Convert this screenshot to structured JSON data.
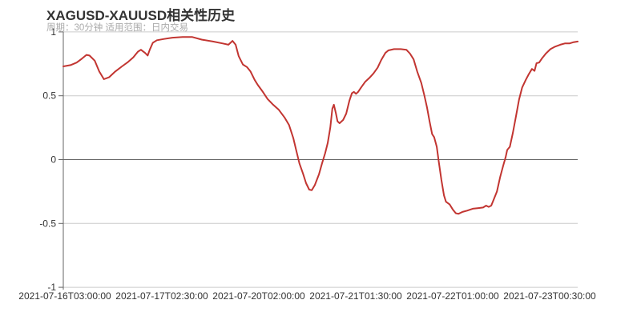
{
  "header": {
    "title": "XAGUSD-XAUUSD相关性历史",
    "subtitle": "周期：30分钟 适用范围：日内交易"
  },
  "chart_data": {
    "type": "line",
    "title": "XAGUSD-XAUUSD相关性历史",
    "subtitle": "周期：30分钟 适用范围：日内交易",
    "xlabel": "",
    "ylabel": "",
    "ylim": [
      -1,
      1
    ],
    "yticks": [
      1,
      0.5,
      0,
      -0.5,
      -1
    ],
    "xtick_labels": [
      "2021-07-16T03:00:00",
      "2021-07-17T02:30:00",
      "2021-07-20T02:00:00",
      "2021-07-21T01:30:00",
      "2021-07-22T01:00:00",
      "2021-07-23T00:30:00"
    ],
    "grid": true,
    "legend_position": "none",
    "colors": {
      "series": "#c23531",
      "grid_light": "#cccccc",
      "axis": "#666666",
      "zero_line": "#666666",
      "tick_label": "#333333",
      "title": "#333333",
      "subtitle": "#aaaaaa",
      "background": "#ffffff"
    },
    "series": [
      {
        "name": "XAGUSD-XAUUSD 相关性",
        "color": "#c23531",
        "points": [
          [
            0.0,
            0.73
          ],
          [
            0.014,
            0.74
          ],
          [
            0.026,
            0.76
          ],
          [
            0.036,
            0.79
          ],
          [
            0.045,
            0.82
          ],
          [
            0.051,
            0.815
          ],
          [
            0.061,
            0.775
          ],
          [
            0.07,
            0.69
          ],
          [
            0.079,
            0.63
          ],
          [
            0.089,
            0.645
          ],
          [
            0.101,
            0.69
          ],
          [
            0.114,
            0.73
          ],
          [
            0.126,
            0.765
          ],
          [
            0.136,
            0.8
          ],
          [
            0.145,
            0.845
          ],
          [
            0.151,
            0.86
          ],
          [
            0.159,
            0.835
          ],
          [
            0.164,
            0.815
          ],
          [
            0.168,
            0.86
          ],
          [
            0.174,
            0.915
          ],
          [
            0.182,
            0.935
          ],
          [
            0.196,
            0.945
          ],
          [
            0.212,
            0.955
          ],
          [
            0.232,
            0.96
          ],
          [
            0.251,
            0.96
          ],
          [
            0.269,
            0.94
          ],
          [
            0.291,
            0.925
          ],
          [
            0.31,
            0.91
          ],
          [
            0.321,
            0.9
          ],
          [
            0.329,
            0.93
          ],
          [
            0.335,
            0.9
          ],
          [
            0.341,
            0.81
          ],
          [
            0.349,
            0.745
          ],
          [
            0.357,
            0.725
          ],
          [
            0.364,
            0.69
          ],
          [
            0.372,
            0.625
          ],
          [
            0.378,
            0.585
          ],
          [
            0.388,
            0.53
          ],
          [
            0.397,
            0.475
          ],
          [
            0.408,
            0.43
          ],
          [
            0.419,
            0.39
          ],
          [
            0.43,
            0.33
          ],
          [
            0.439,
            0.27
          ],
          [
            0.447,
            0.17
          ],
          [
            0.453,
            0.07
          ],
          [
            0.459,
            -0.03
          ],
          [
            0.466,
            -0.11
          ],
          [
            0.472,
            -0.185
          ],
          [
            0.478,
            -0.235
          ],
          [
            0.483,
            -0.24
          ],
          [
            0.489,
            -0.2
          ],
          [
            0.497,
            -0.115
          ],
          [
            0.503,
            -0.03
          ],
          [
            0.509,
            0.05
          ],
          [
            0.514,
            0.13
          ],
          [
            0.519,
            0.25
          ],
          [
            0.523,
            0.4
          ],
          [
            0.526,
            0.43
          ],
          [
            0.53,
            0.36
          ],
          [
            0.533,
            0.3
          ],
          [
            0.537,
            0.285
          ],
          [
            0.544,
            0.31
          ],
          [
            0.55,
            0.36
          ],
          [
            0.556,
            0.46
          ],
          [
            0.561,
            0.52
          ],
          [
            0.565,
            0.53
          ],
          [
            0.569,
            0.515
          ],
          [
            0.573,
            0.53
          ],
          [
            0.579,
            0.565
          ],
          [
            0.587,
            0.61
          ],
          [
            0.595,
            0.64
          ],
          [
            0.603,
            0.675
          ],
          [
            0.611,
            0.72
          ],
          [
            0.618,
            0.78
          ],
          [
            0.626,
            0.835
          ],
          [
            0.632,
            0.855
          ],
          [
            0.643,
            0.865
          ],
          [
            0.656,
            0.865
          ],
          [
            0.667,
            0.86
          ],
          [
            0.674,
            0.83
          ],
          [
            0.681,
            0.785
          ],
          [
            0.688,
            0.69
          ],
          [
            0.696,
            0.6
          ],
          [
            0.702,
            0.5
          ],
          [
            0.707,
            0.41
          ],
          [
            0.712,
            0.3
          ],
          [
            0.717,
            0.2
          ],
          [
            0.721,
            0.175
          ],
          [
            0.726,
            0.1
          ],
          [
            0.73,
            -0.02
          ],
          [
            0.735,
            -0.16
          ],
          [
            0.74,
            -0.28
          ],
          [
            0.744,
            -0.33
          ],
          [
            0.751,
            -0.35
          ],
          [
            0.757,
            -0.39
          ],
          [
            0.763,
            -0.42
          ],
          [
            0.768,
            -0.425
          ],
          [
            0.776,
            -0.41
          ],
          [
            0.785,
            -0.4
          ],
          [
            0.796,
            -0.385
          ],
          [
            0.807,
            -0.38
          ],
          [
            0.816,
            -0.375
          ],
          [
            0.822,
            -0.36
          ],
          [
            0.827,
            -0.37
          ],
          [
            0.832,
            -0.36
          ],
          [
            0.836,
            -0.32
          ],
          [
            0.843,
            -0.25
          ],
          [
            0.849,
            -0.14
          ],
          [
            0.855,
            -0.05
          ],
          [
            0.86,
            0.02
          ],
          [
            0.863,
            0.075
          ],
          [
            0.868,
            0.1
          ],
          [
            0.874,
            0.21
          ],
          [
            0.88,
            0.34
          ],
          [
            0.886,
            0.47
          ],
          [
            0.892,
            0.565
          ],
          [
            0.899,
            0.625
          ],
          [
            0.905,
            0.67
          ],
          [
            0.911,
            0.71
          ],
          [
            0.916,
            0.695
          ],
          [
            0.92,
            0.755
          ],
          [
            0.925,
            0.76
          ],
          [
            0.93,
            0.79
          ],
          [
            0.938,
            0.83
          ],
          [
            0.947,
            0.865
          ],
          [
            0.956,
            0.885
          ],
          [
            0.966,
            0.9
          ],
          [
            0.975,
            0.91
          ],
          [
            0.984,
            0.91
          ],
          [
            0.992,
            0.92
          ],
          [
            1.0,
            0.925
          ]
        ]
      }
    ]
  }
}
